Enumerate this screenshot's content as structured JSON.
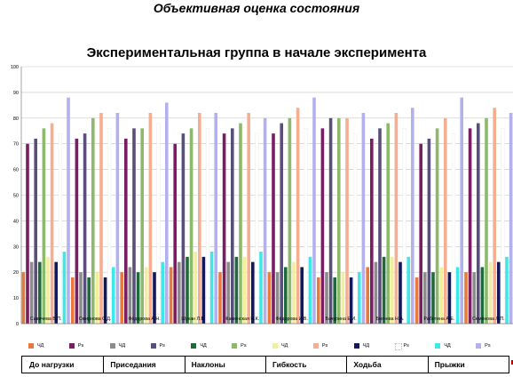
{
  "slide_title": "Объективная оценка состояния",
  "chart_data": {
    "type": "bar",
    "title": "Экспериментальная группа в начале эксперимента",
    "xlabel": "",
    "ylabel": "",
    "ylim": [
      0,
      100
    ],
    "yticks": [
      0,
      10,
      20,
      30,
      40,
      50,
      60,
      70,
      80,
      90,
      100
    ],
    "grid": true,
    "legend_position": "bottom",
    "categories": [
      "Савичева В.П.",
      "Смирнова С.Д.",
      "Фёдорова А.Н.",
      "Шукан Л.В.",
      "Каменская Н.К.",
      "Фёдорова И.В.",
      "Бачурина Е.И.",
      "Бигнева Н.А.",
      "Работина А.Е.",
      "Семёнова Л.П."
    ],
    "series": [
      {
        "name": "ЧД",
        "color": "#e87a3c",
        "values": [
          20,
          18,
          20,
          22,
          20,
          20,
          18,
          22,
          18,
          20
        ]
      },
      {
        "name": "Ps",
        "color": "#7a1e63",
        "values": [
          70,
          72,
          72,
          70,
          74,
          74,
          76,
          72,
          70,
          76
        ]
      },
      {
        "name": "ЧД",
        "color": "#8c8c8c",
        "values": [
          24,
          20,
          22,
          24,
          24,
          20,
          20,
          24,
          20,
          20
        ]
      },
      {
        "name": "Ps",
        "color": "#5a4f7c",
        "values": [
          72,
          74,
          76,
          74,
          76,
          78,
          80,
          76,
          72,
          78
        ]
      },
      {
        "name": "ЧД",
        "color": "#1f6a3a",
        "values": [
          24,
          18,
          20,
          26,
          26,
          22,
          18,
          26,
          20,
          22
        ]
      },
      {
        "name": "Ps",
        "color": "#8cba6a",
        "values": [
          76,
          80,
          76,
          76,
          78,
          80,
          80,
          78,
          76,
          80
        ]
      },
      {
        "name": "ЧД",
        "color": "#f2ee9c",
        "values": [
          26,
          20,
          22,
          28,
          26,
          24,
          20,
          26,
          22,
          24
        ]
      },
      {
        "name": "Ps",
        "color": "#f7ad8f",
        "values": [
          78,
          82,
          82,
          82,
          82,
          84,
          80,
          82,
          80,
          84
        ]
      },
      {
        "name": "ЧД",
        "color": "#13175c",
        "values": [
          24,
          18,
          20,
          26,
          24,
          22,
          18,
          24,
          20,
          24
        ]
      },
      {
        "name": "Ps",
        "color": "#ffffff",
        "values": [
          74,
          76,
          78,
          76,
          74,
          76,
          74,
          76,
          74,
          76
        ]
      },
      {
        "name": "ЧД",
        "color": "#3fe8e8",
        "values": [
          28,
          22,
          24,
          28,
          28,
          26,
          20,
          26,
          22,
          26
        ]
      },
      {
        "name": "Ps",
        "color": "#b3b0ee",
        "values": [
          88,
          82,
          86,
          82,
          80,
          88,
          82,
          84,
          88,
          82
        ]
      }
    ]
  },
  "legend_groups": [
    "До нагрузки",
    "Приседания",
    "Наклоны",
    "Гибкость",
    "Ходьба",
    "Прыжки"
  ],
  "colors": {
    "grid": "#c8c8c8",
    "axis": "#808080",
    "separator": "#000000",
    "accent_mark": "#c00000"
  }
}
